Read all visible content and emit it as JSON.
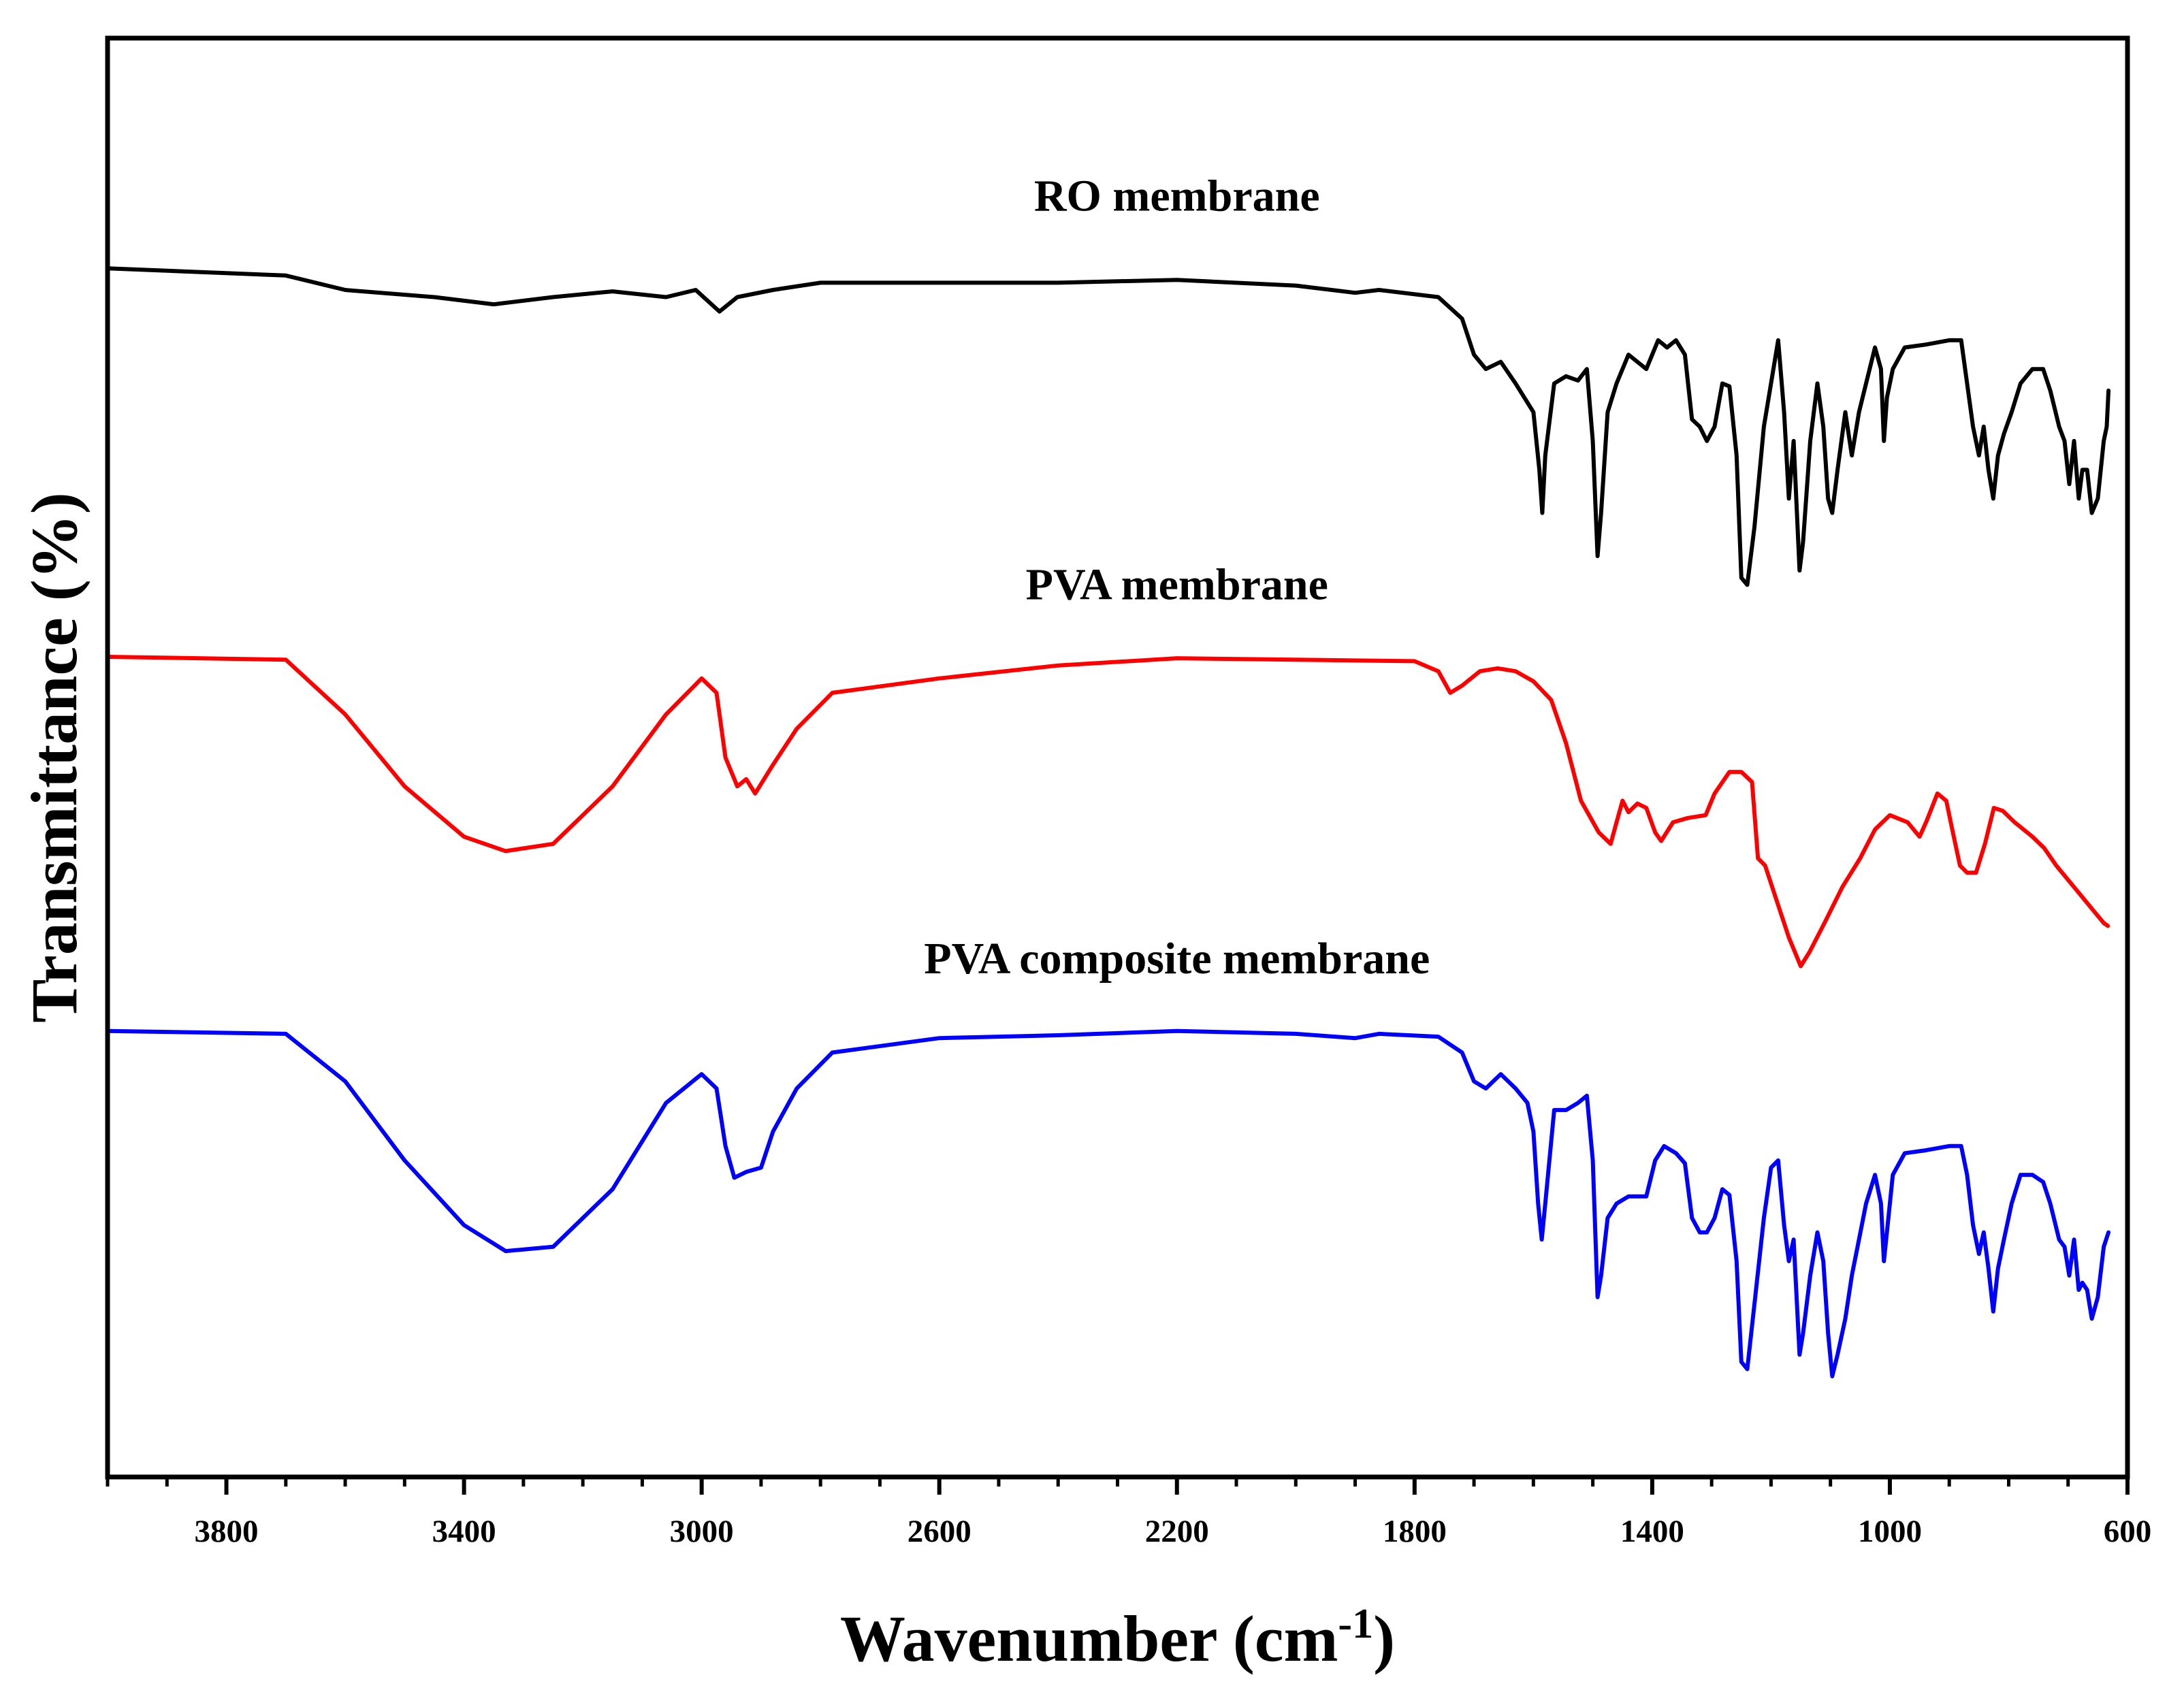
{
  "chart_data": {
    "type": "line",
    "title": "",
    "xlabel": "Wavenumber (cm",
    "xlabel_superscript": "-1",
    "xlabel_suffix": ")",
    "ylabel": "Transmittance (%)",
    "xlim": [
      4000,
      600
    ],
    "x_reversed": true,
    "ylim": [
      0,
      100
    ],
    "y_ticks_visible": false,
    "grid": false,
    "legend": "none (series labelled inline above each curve)",
    "x_ticks": [
      {
        "value": 3800,
        "label": "3800"
      },
      {
        "value": 3400,
        "label": "3400"
      },
      {
        "value": 3000,
        "label": "3000"
      },
      {
        "value": 2600,
        "label": "2600"
      },
      {
        "value": 2200,
        "label": "2200"
      },
      {
        "value": 1800,
        "label": "1800"
      },
      {
        "value": 1400,
        "label": "1400"
      },
      {
        "value": 1000,
        "label": "1000"
      },
      {
        "value": 600,
        "label": "600"
      }
    ],
    "x_minor_step": 100,
    "series": [
      {
        "name": "RO membrane",
        "color": "#000000",
        "label_x": 2200,
        "label_y": 88,
        "points": [
          [
            4000,
            84
          ],
          [
            3700,
            83.5
          ],
          [
            3600,
            82.5
          ],
          [
            3450,
            82
          ],
          [
            3350,
            81.5
          ],
          [
            3250,
            82
          ],
          [
            3150,
            82.4
          ],
          [
            3060,
            82
          ],
          [
            3010,
            82.5
          ],
          [
            2970,
            81
          ],
          [
            2940,
            82
          ],
          [
            2880,
            82.5
          ],
          [
            2800,
            83
          ],
          [
            2600,
            83
          ],
          [
            2400,
            83
          ],
          [
            2200,
            83.2
          ],
          [
            2000,
            82.8
          ],
          [
            1900,
            82.3
          ],
          [
            1860,
            82.5
          ],
          [
            1760,
            82
          ],
          [
            1720,
            80.5
          ],
          [
            1700,
            78
          ],
          [
            1680,
            77
          ],
          [
            1655,
            77.5
          ],
          [
            1630,
            76
          ],
          [
            1600,
            74
          ],
          [
            1590,
            70
          ],
          [
            1585,
            67
          ],
          [
            1580,
            71
          ],
          [
            1565,
            76
          ],
          [
            1545,
            76.5
          ],
          [
            1525,
            76.2
          ],
          [
            1510,
            77
          ],
          [
            1500,
            72
          ],
          [
            1492,
            64
          ],
          [
            1486,
            67
          ],
          [
            1475,
            74
          ],
          [
            1460,
            76
          ],
          [
            1440,
            78
          ],
          [
            1410,
            77
          ],
          [
            1390,
            79
          ],
          [
            1375,
            78.5
          ],
          [
            1360,
            79
          ],
          [
            1345,
            78
          ],
          [
            1333,
            73.5
          ],
          [
            1320,
            73
          ],
          [
            1308,
            72
          ],
          [
            1295,
            73
          ],
          [
            1282,
            76
          ],
          [
            1270,
            75.8
          ],
          [
            1258,
            71
          ],
          [
            1250,
            62.5
          ],
          [
            1240,
            62
          ],
          [
            1228,
            66
          ],
          [
            1212,
            73
          ],
          [
            1200,
            76
          ],
          [
            1188,
            79
          ],
          [
            1178,
            74
          ],
          [
            1170,
            68
          ],
          [
            1162,
            72
          ],
          [
            1152,
            63
          ],
          [
            1146,
            65
          ],
          [
            1134,
            72
          ],
          [
            1122,
            76
          ],
          [
            1112,
            73
          ],
          [
            1104,
            68
          ],
          [
            1097,
            67
          ],
          [
            1088,
            70
          ],
          [
            1075,
            74
          ],
          [
            1064,
            71
          ],
          [
            1052,
            74
          ],
          [
            1040,
            76
          ],
          [
            1025,
            78.5
          ],
          [
            1015,
            77
          ],
          [
            1010,
            72
          ],
          [
            1005,
            75
          ],
          [
            995,
            77
          ],
          [
            975,
            78.5
          ],
          [
            940,
            78.7
          ],
          [
            900,
            79
          ],
          [
            880,
            79
          ],
          [
            870,
            76
          ],
          [
            860,
            73
          ],
          [
            850,
            71
          ],
          [
            842,
            73
          ],
          [
            834,
            70
          ],
          [
            826,
            68
          ],
          [
            818,
            71
          ],
          [
            808,
            72.5
          ],
          [
            795,
            74
          ],
          [
            780,
            76
          ],
          [
            760,
            77
          ],
          [
            742,
            77
          ],
          [
            730,
            75.5
          ],
          [
            715,
            73
          ],
          [
            706,
            72
          ],
          [
            698,
            69
          ],
          [
            690,
            72
          ],
          [
            682,
            68
          ],
          [
            676,
            70
          ],
          [
            668,
            70
          ],
          [
            660,
            67
          ],
          [
            650,
            68
          ],
          [
            640,
            72
          ],
          [
            635,
            73
          ],
          [
            632,
            75.5
          ]
        ]
      },
      {
        "name": "PVA membrane",
        "color": "#ff0000",
        "label_x": 2200,
        "label_y": 61,
        "points": [
          [
            4000,
            57
          ],
          [
            3700,
            56.8
          ],
          [
            3600,
            53
          ],
          [
            3500,
            48
          ],
          [
            3400,
            44.5
          ],
          [
            3330,
            43.5
          ],
          [
            3250,
            44
          ],
          [
            3150,
            48
          ],
          [
            3060,
            53
          ],
          [
            3000,
            55.5
          ],
          [
            2975,
            54.5
          ],
          [
            2960,
            50
          ],
          [
            2940,
            48
          ],
          [
            2925,
            48.5
          ],
          [
            2910,
            47.5
          ],
          [
            2880,
            49.5
          ],
          [
            2840,
            52
          ],
          [
            2780,
            54.5
          ],
          [
            2600,
            55.5
          ],
          [
            2400,
            56.4
          ],
          [
            2200,
            56.9
          ],
          [
            2000,
            56.8
          ],
          [
            1800,
            56.7
          ],
          [
            1760,
            56
          ],
          [
            1740,
            54.5
          ],
          [
            1720,
            55
          ],
          [
            1690,
            56
          ],
          [
            1660,
            56.2
          ],
          [
            1630,
            56
          ],
          [
            1600,
            55.3
          ],
          [
            1570,
            54
          ],
          [
            1545,
            51
          ],
          [
            1520,
            47
          ],
          [
            1490,
            44.8
          ],
          [
            1470,
            44
          ],
          [
            1460,
            45.5
          ],
          [
            1450,
            47
          ],
          [
            1440,
            46.2
          ],
          [
            1425,
            46.8
          ],
          [
            1410,
            46.5
          ],
          [
            1395,
            44.8
          ],
          [
            1385,
            44.2
          ],
          [
            1365,
            45.5
          ],
          [
            1340,
            45.8
          ],
          [
            1310,
            46
          ],
          [
            1295,
            47.5
          ],
          [
            1270,
            49
          ],
          [
            1250,
            49
          ],
          [
            1232,
            48.3
          ],
          [
            1222,
            43
          ],
          [
            1210,
            42.5
          ],
          [
            1190,
            40
          ],
          [
            1170,
            37.5
          ],
          [
            1150,
            35.5
          ],
          [
            1135,
            36.5
          ],
          [
            1110,
            38.5
          ],
          [
            1080,
            41
          ],
          [
            1050,
            43
          ],
          [
            1025,
            45
          ],
          [
            1000,
            46
          ],
          [
            970,
            45.5
          ],
          [
            950,
            44.5
          ],
          [
            938,
            45.6
          ],
          [
            920,
            47.5
          ],
          [
            905,
            47
          ],
          [
            895,
            45
          ],
          [
            882,
            42.5
          ],
          [
            870,
            42
          ],
          [
            855,
            42
          ],
          [
            840,
            44
          ],
          [
            825,
            46.5
          ],
          [
            810,
            46.3
          ],
          [
            790,
            45.5
          ],
          [
            760,
            44.5
          ],
          [
            740,
            43.7
          ],
          [
            720,
            42.5
          ],
          [
            700,
            41.5
          ],
          [
            680,
            40.5
          ],
          [
            660,
            39.5
          ],
          [
            640,
            38.5
          ],
          [
            633,
            38.3
          ]
        ]
      },
      {
        "name": "PVA composite membrane",
        "color": "#0000ff",
        "label_x": 2200,
        "label_y": 35,
        "points": [
          [
            4000,
            31
          ],
          [
            3700,
            30.8
          ],
          [
            3600,
            27.5
          ],
          [
            3500,
            22
          ],
          [
            3400,
            17.5
          ],
          [
            3330,
            15.7
          ],
          [
            3250,
            16
          ],
          [
            3150,
            20
          ],
          [
            3060,
            26
          ],
          [
            3000,
            28
          ],
          [
            2975,
            27
          ],
          [
            2960,
            23
          ],
          [
            2945,
            20.8
          ],
          [
            2925,
            21.2
          ],
          [
            2900,
            21.5
          ],
          [
            2880,
            24
          ],
          [
            2840,
            27
          ],
          [
            2780,
            29.5
          ],
          [
            2600,
            30.5
          ],
          [
            2400,
            30.7
          ],
          [
            2200,
            31
          ],
          [
            2000,
            30.8
          ],
          [
            1900,
            30.5
          ],
          [
            1860,
            30.8
          ],
          [
            1760,
            30.6
          ],
          [
            1720,
            29.5
          ],
          [
            1700,
            27.5
          ],
          [
            1680,
            27
          ],
          [
            1655,
            28
          ],
          [
            1630,
            27
          ],
          [
            1610,
            26
          ],
          [
            1600,
            24
          ],
          [
            1592,
            19
          ],
          [
            1586,
            16.5
          ],
          [
            1580,
            19
          ],
          [
            1565,
            25.5
          ],
          [
            1545,
            25.5
          ],
          [
            1525,
            26
          ],
          [
            1510,
            26.5
          ],
          [
            1500,
            22
          ],
          [
            1492,
            12.5
          ],
          [
            1486,
            14
          ],
          [
            1475,
            18
          ],
          [
            1460,
            19
          ],
          [
            1440,
            19.5
          ],
          [
            1410,
            19.5
          ],
          [
            1395,
            22
          ],
          [
            1380,
            23
          ],
          [
            1360,
            22.5
          ],
          [
            1345,
            21.8
          ],
          [
            1333,
            18
          ],
          [
            1320,
            17
          ],
          [
            1308,
            17
          ],
          [
            1295,
            18
          ],
          [
            1282,
            20
          ],
          [
            1270,
            19.6
          ],
          [
            1258,
            15
          ],
          [
            1250,
            8
          ],
          [
            1240,
            7.5
          ],
          [
            1228,
            12
          ],
          [
            1212,
            18
          ],
          [
            1200,
            21.5
          ],
          [
            1188,
            22
          ],
          [
            1178,
            17.5
          ],
          [
            1170,
            15
          ],
          [
            1162,
            16.5
          ],
          [
            1152,
            8.5
          ],
          [
            1146,
            10
          ],
          [
            1134,
            14
          ],
          [
            1122,
            17
          ],
          [
            1112,
            15
          ],
          [
            1104,
            10
          ],
          [
            1097,
            7
          ],
          [
            1088,
            8.5
          ],
          [
            1075,
            11
          ],
          [
            1064,
            14
          ],
          [
            1052,
            16.5
          ],
          [
            1040,
            19
          ],
          [
            1025,
            21
          ],
          [
            1015,
            19
          ],
          [
            1010,
            15
          ],
          [
            1005,
            17
          ],
          [
            995,
            21
          ],
          [
            975,
            22.5
          ],
          [
            940,
            22.7
          ],
          [
            900,
            23
          ],
          [
            880,
            23
          ],
          [
            870,
            21
          ],
          [
            860,
            17.5
          ],
          [
            850,
            15.5
          ],
          [
            842,
            17
          ],
          [
            834,
            14.5
          ],
          [
            826,
            11.5
          ],
          [
            818,
            14.5
          ],
          [
            808,
            16.5
          ],
          [
            795,
            19
          ],
          [
            780,
            21
          ],
          [
            760,
            21
          ],
          [
            742,
            20.5
          ],
          [
            730,
            19
          ],
          [
            715,
            16.5
          ],
          [
            706,
            16
          ],
          [
            698,
            14
          ],
          [
            690,
            16.5
          ],
          [
            682,
            13
          ],
          [
            676,
            13.5
          ],
          [
            668,
            13
          ],
          [
            660,
            11
          ],
          [
            650,
            12.5
          ],
          [
            640,
            16
          ],
          [
            632,
            17
          ]
        ]
      }
    ]
  }
}
